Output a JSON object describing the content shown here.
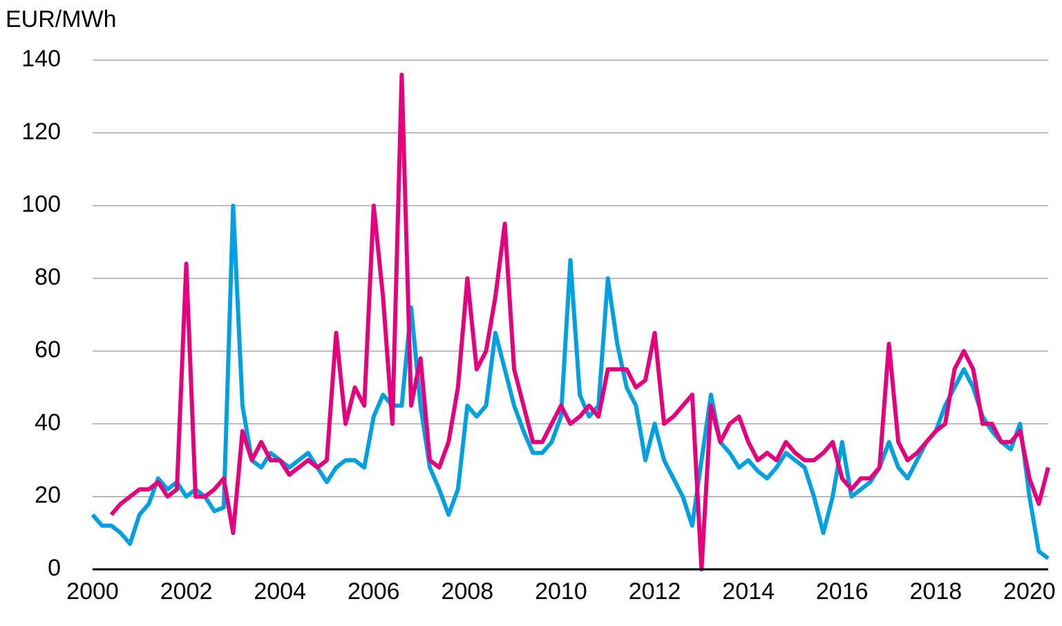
{
  "chart_data": {
    "type": "line",
    "y_label": "EUR/MWh",
    "x": [
      2000.0,
      2000.2,
      2000.4,
      2000.6,
      2000.8,
      2001.0,
      2001.2,
      2001.4,
      2001.6,
      2001.8,
      2002.0,
      2002.2,
      2002.4,
      2002.6,
      2002.8,
      2003.0,
      2003.2,
      2003.4,
      2003.6,
      2003.8,
      2004.0,
      2004.2,
      2004.4,
      2004.6,
      2004.8,
      2005.0,
      2005.2,
      2005.4,
      2005.6,
      2005.8,
      2006.0,
      2006.2,
      2006.4,
      2006.6,
      2006.8,
      2007.0,
      2007.2,
      2007.4,
      2007.6,
      2007.8,
      2008.0,
      2008.2,
      2008.4,
      2008.6,
      2008.8,
      2009.0,
      2009.2,
      2009.4,
      2009.6,
      2009.8,
      2010.0,
      2010.2,
      2010.4,
      2010.6,
      2010.8,
      2011.0,
      2011.2,
      2011.4,
      2011.6,
      2011.8,
      2012.0,
      2012.2,
      2012.4,
      2012.6,
      2012.8,
      2013.0,
      2013.2,
      2013.4,
      2013.6,
      2013.8,
      2014.0,
      2014.2,
      2014.4,
      2014.6,
      2014.8,
      2015.0,
      2015.2,
      2015.4,
      2015.6,
      2015.8,
      2016.0,
      2016.2,
      2016.4,
      2016.6,
      2016.8,
      2017.0,
      2017.2,
      2017.4,
      2017.6,
      2017.8,
      2018.0,
      2018.2,
      2018.4,
      2018.6,
      2018.8,
      2019.0,
      2019.2,
      2019.4,
      2019.6,
      2019.8,
      2020.0,
      2020.2,
      2020.4
    ],
    "series": [
      {
        "color": "#00a0e3",
        "values": [
          15,
          12,
          12,
          10,
          7,
          15,
          18,
          25,
          22,
          24,
          20,
          22,
          20,
          16,
          17,
          100,
          45,
          30,
          28,
          32,
          30,
          28,
          30,
          32,
          28,
          24,
          28,
          30,
          30,
          28,
          42,
          48,
          45,
          45,
          72,
          45,
          28,
          22,
          15,
          22,
          45,
          42,
          45,
          65,
          55,
          45,
          38,
          32,
          32,
          35,
          42,
          85,
          48,
          42,
          45,
          80,
          62,
          50,
          45,
          30,
          40,
          30,
          25,
          20,
          12,
          30,
          48,
          35,
          32,
          28,
          30,
          27,
          25,
          28,
          32,
          30,
          28,
          20,
          10,
          20,
          35,
          20,
          22,
          24,
          28,
          35,
          28,
          25,
          30,
          35,
          38,
          45,
          50,
          55,
          50,
          42,
          38,
          35,
          33,
          40,
          20,
          5,
          3
        ]
      },
      {
        "color": "#e6007e",
        "values": [
          null,
          null,
          15,
          18,
          20,
          22,
          22,
          24,
          20,
          22,
          84,
          20,
          20,
          22,
          25,
          10,
          38,
          30,
          35,
          30,
          30,
          26,
          28,
          30,
          28,
          30,
          65,
          40,
          50,
          45,
          100,
          75,
          40,
          136,
          45,
          58,
          30,
          28,
          35,
          50,
          80,
          55,
          60,
          75,
          95,
          55,
          45,
          35,
          35,
          40,
          45,
          40,
          42,
          45,
          42,
          55,
          55,
          55,
          50,
          52,
          65,
          40,
          42,
          45,
          48,
          0,
          45,
          35,
          40,
          42,
          35,
          30,
          32,
          30,
          35,
          32,
          30,
          30,
          32,
          35,
          25,
          22,
          25,
          25,
          28,
          62,
          35,
          30,
          32,
          35,
          38,
          40,
          55,
          60,
          55,
          40,
          40,
          35,
          35,
          38,
          25,
          18,
          28
        ]
      }
    ],
    "xlim": [
      2000,
      2020.4
    ],
    "xticks": [
      2000,
      2002,
      2004,
      2006,
      2008,
      2010,
      2012,
      2014,
      2016,
      2018,
      2020
    ],
    "ylim": [
      0,
      140
    ],
    "yticks": [
      0,
      20,
      40,
      60,
      80,
      100,
      120,
      140
    ],
    "grid": true
  }
}
